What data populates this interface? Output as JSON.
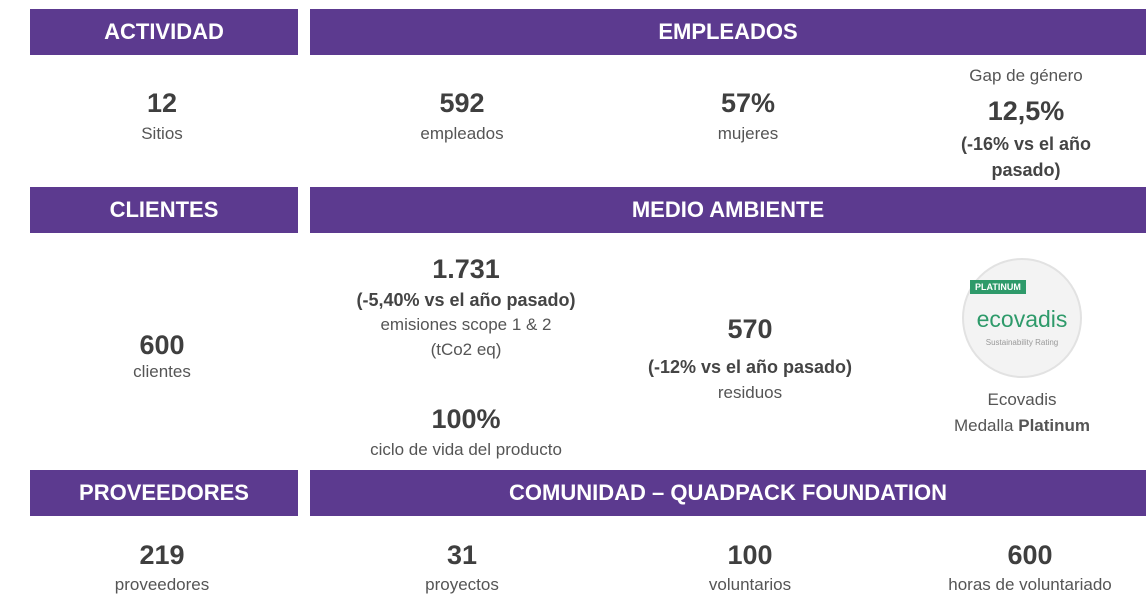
{
  "sections": {
    "actividad": {
      "header": "ACTIVIDAD",
      "value": "12",
      "label": "Sitios"
    },
    "empleados": {
      "header": "EMPLEADOS",
      "employees": {
        "value": "592",
        "label": "empleados"
      },
      "women": {
        "value": "57%",
        "label": "mujeres"
      },
      "gender_gap": {
        "title": "Gap de género",
        "value": "12,5%",
        "change_line1": "(-16% vs el año",
        "change_line2": "pasado)"
      }
    },
    "clientes": {
      "header": "CLIENTES",
      "value": "600",
      "label": "clientes"
    },
    "medio_ambiente": {
      "header": "MEDIO AMBIENTE",
      "emissions": {
        "value": "1.731",
        "change": "(-5,40% vs el año pasado)",
        "label_line1": "emisiones scope 1 & 2",
        "label_line2": "(tCo2 eq)"
      },
      "lifecycle": {
        "value": "100%",
        "label": "ciclo de vida del producto"
      },
      "waste": {
        "value": "570",
        "change": "(-12% vs el año pasado)",
        "label": "residuos"
      },
      "ecovadis": {
        "badge_level": "PLATINUM",
        "badge_brand": "ecovadis",
        "badge_caption": "Sustainability Rating",
        "name": "Ecovadis",
        "medal_prefix": "Medalla",
        "medal_level": "Platinum"
      }
    },
    "proveedores": {
      "header": "PROVEEDORES",
      "value": "219",
      "label": "proveedores"
    },
    "comunidad": {
      "header": "COMUNIDAD – QUADPACK FOUNDATION",
      "projects": {
        "value": "31",
        "label": "proyectos"
      },
      "volunteers": {
        "value": "100",
        "label": "voluntarios"
      },
      "hours": {
        "value": "600",
        "label": "horas de voluntariado"
      }
    }
  }
}
